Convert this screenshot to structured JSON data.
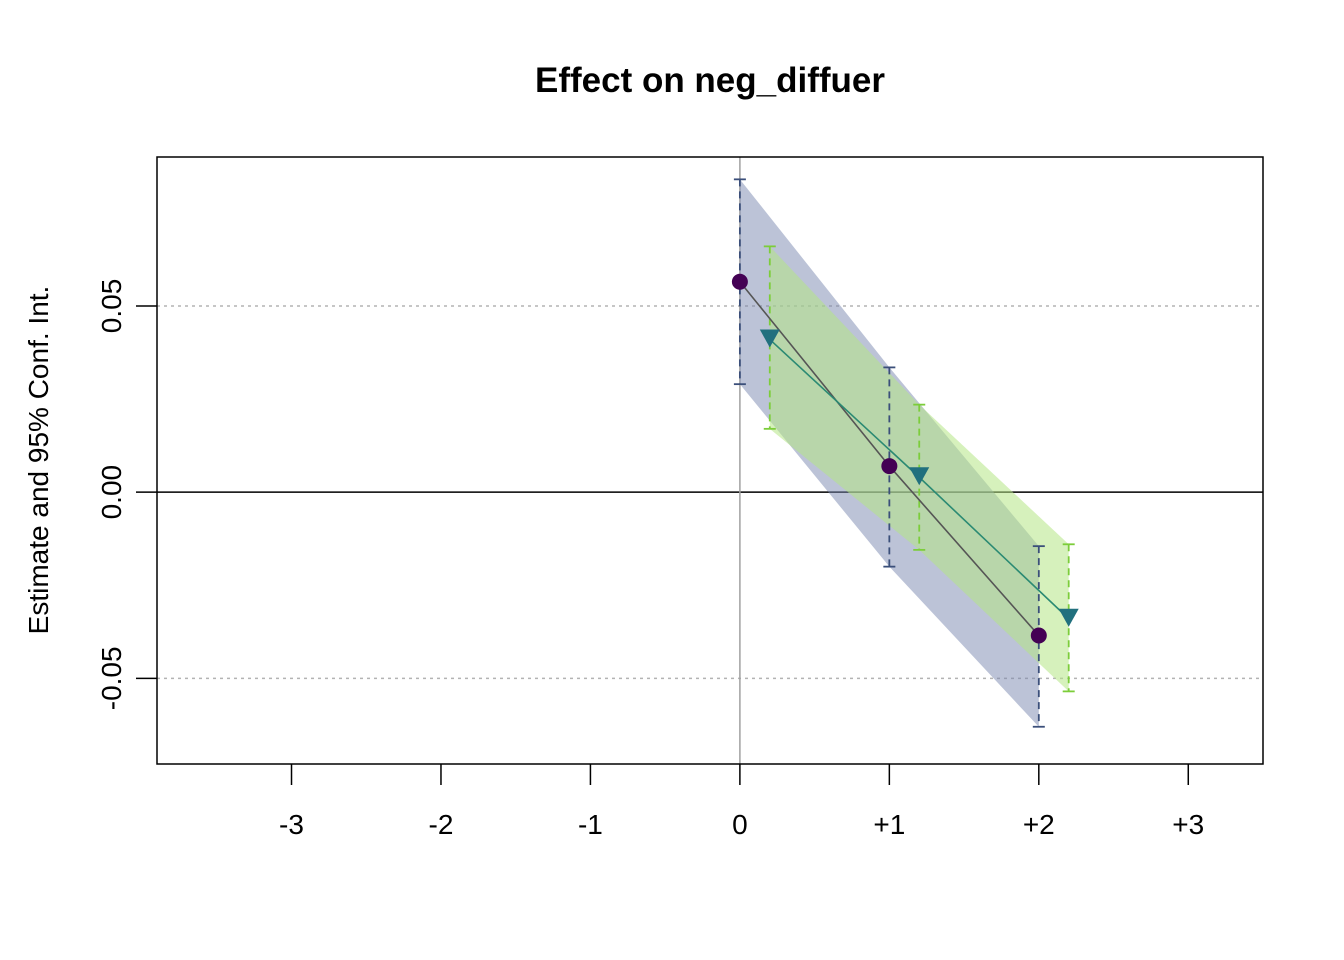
{
  "chart_data": {
    "type": "line",
    "title": "Effect on neg_diffuer",
    "xlabel": "",
    "ylabel": "Estimate and 95% Conf. Int.",
    "xlim": [
      -3.9,
      3.5
    ],
    "ylim": [
      -0.073,
      0.09
    ],
    "x_ticks": [
      {
        "value": -3,
        "label": "-3"
      },
      {
        "value": -2,
        "label": "-2"
      },
      {
        "value": -1,
        "label": "-1"
      },
      {
        "value": 0,
        "label": "0"
      },
      {
        "value": 1,
        "label": "+1"
      },
      {
        "value": 2,
        "label": "+2"
      },
      {
        "value": 3,
        "label": "+3"
      }
    ],
    "y_ticks": [
      {
        "value": -0.05,
        "label": "-0.05"
      },
      {
        "value": 0.0,
        "label": "0.00"
      },
      {
        "value": 0.05,
        "label": "0.05"
      }
    ],
    "reference_lines": {
      "h_dotted": [
        -0.05,
        0.05
      ],
      "h_solid": 0,
      "v_solid": 0
    },
    "series": [
      {
        "marker": "circle",
        "color": "#440154",
        "line_color": "#555555",
        "band_color": "#7a88b0",
        "whisker_color": "#3b4f7a",
        "points": [
          {
            "x": 0,
            "y": 0.0565,
            "lo": 0.029,
            "hi": 0.084
          },
          {
            "x": 1,
            "y": 0.007,
            "lo": -0.02,
            "hi": 0.0335
          },
          {
            "x": 2,
            "y": -0.0385,
            "lo": -0.063,
            "hi": -0.0145
          }
        ]
      },
      {
        "marker": "triangle-down",
        "color": "#21707e",
        "line_color": "#2b8a73",
        "band_color": "#b5e685",
        "whisker_color": "#7ccd3a",
        "points": [
          {
            "x": 0.2,
            "y": 0.041,
            "lo": 0.017,
            "hi": 0.066
          },
          {
            "x": 1.2,
            "y": 0.004,
            "lo": -0.0155,
            "hi": 0.0235
          },
          {
            "x": 2.2,
            "y": -0.034,
            "lo": -0.0535,
            "hi": -0.014
          }
        ]
      }
    ],
    "grid": false,
    "legend": "none"
  }
}
